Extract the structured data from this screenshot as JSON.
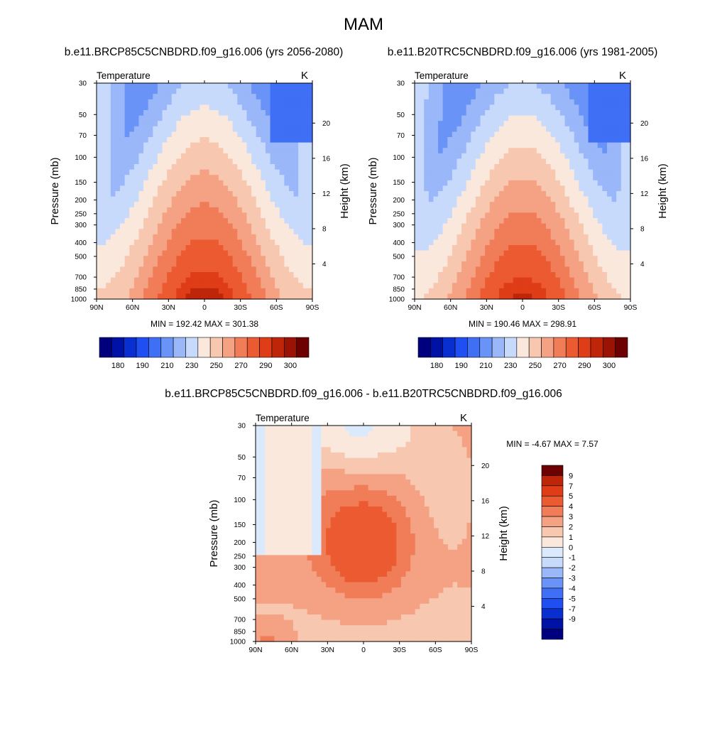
{
  "page_title": "MAM",
  "colors": {
    "abs_scale": [
      "#00007f",
      "#0012a6",
      "#0a2fd0",
      "#1f4ef2",
      "#3f6ff5",
      "#6a93f7",
      "#9ab7f9",
      "#c8dafc",
      "#fbe8dd",
      "#f8c7b0",
      "#f4a283",
      "#f07c58",
      "#eb5a30",
      "#df3d17",
      "#bf2508",
      "#9b1305",
      "#6d0000"
    ],
    "diff_scale": [
      "#00007f",
      "#0012a6",
      "#0a2fd0",
      "#1f4ef2",
      "#3f6ff5",
      "#6a93f7",
      "#9ab7f9",
      "#c8dafc",
      "#daeafc",
      "#fbe8dd",
      "#f8c7b0",
      "#f4a283",
      "#f07c58",
      "#eb5a30",
      "#df3d17",
      "#bf2508",
      "#6d0000"
    ]
  },
  "chart_data": [
    {
      "type": "heatmap",
      "title": "b.e11.BRCP85C5CNBDRD.f09_g16.006 (yrs 2056-2080)",
      "left_label": "Temperature",
      "right_label": "K",
      "variable": "Temperature",
      "units": "K",
      "xlabel": "",
      "ylabel": "Pressure (mb)",
      "y2label": "Height (km)",
      "x_ticks": [
        "90N",
        "60N",
        "30N",
        "0",
        "30S",
        "60S",
        "90S"
      ],
      "y_ticks": [
        "30",
        "50",
        "70",
        "100",
        "150",
        "200",
        "250",
        "300",
        "400",
        "500",
        "700",
        "850",
        "1000"
      ],
      "y2_ticks": [
        "20",
        "16",
        "12",
        "8",
        "4"
      ],
      "ylim": [
        1000,
        30
      ],
      "xlim": [
        90,
        -90
      ],
      "min_label": "MIN = 192.42  MAX = 301.38",
      "min": 192.42,
      "max": 301.38,
      "levels": [
        180,
        185,
        190,
        200,
        210,
        220,
        230,
        240,
        250,
        260,
        270,
        280,
        290,
        295,
        300,
        305
      ],
      "colorbar_labels": [
        "180",
        "190",
        "210",
        "230",
        "250",
        "270",
        "290",
        "300"
      ]
    },
    {
      "type": "heatmap",
      "title": "b.e11.B20TRC5CNBDRD.f09_g16.006 (yrs 1981-2005)",
      "left_label": "Temperature",
      "right_label": "K",
      "variable": "Temperature",
      "units": "K",
      "xlabel": "",
      "ylabel": "Pressure (mb)",
      "y2label": "Height (km)",
      "x_ticks": [
        "90N",
        "60N",
        "30N",
        "0",
        "30S",
        "60S",
        "90S"
      ],
      "y_ticks": [
        "30",
        "50",
        "70",
        "100",
        "150",
        "200",
        "250",
        "300",
        "400",
        "500",
        "700",
        "850",
        "1000"
      ],
      "y2_ticks": [
        "20",
        "16",
        "12",
        "8",
        "4"
      ],
      "ylim": [
        1000,
        30
      ],
      "xlim": [
        90,
        -90
      ],
      "min_label": "MIN = 190.46  MAX = 298.91",
      "min": 190.46,
      "max": 298.91,
      "levels": [
        180,
        185,
        190,
        200,
        210,
        220,
        230,
        240,
        250,
        260,
        270,
        280,
        290,
        295,
        300,
        305
      ],
      "colorbar_labels": [
        "180",
        "190",
        "210",
        "230",
        "250",
        "270",
        "290",
        "300"
      ]
    },
    {
      "type": "heatmap",
      "title": "b.e11.BRCP85C5CNBDRD.f09_g16.006 - b.e11.B20TRC5CNBDRD.f09_g16.006",
      "left_label": "Temperature",
      "right_label": "K",
      "variable": "Temperature",
      "units": "K",
      "xlabel": "",
      "ylabel": "Pressure (mb)",
      "y2label": "Height (km)",
      "x_ticks": [
        "90N",
        "60N",
        "30N",
        "0",
        "30S",
        "60S",
        "90S"
      ],
      "y_ticks": [
        "30",
        "50",
        "70",
        "100",
        "150",
        "200",
        "250",
        "300",
        "400",
        "500",
        "700",
        "850",
        "1000"
      ],
      "y2_ticks": [
        "20",
        "16",
        "12",
        "8",
        "4"
      ],
      "ylim": [
        1000,
        30
      ],
      "xlim": [
        90,
        -90
      ],
      "min_label": "MIN =  -4.67  MAX =   7.57",
      "min": -4.67,
      "max": 7.57,
      "levels": [
        -9,
        -7,
        -5,
        -4,
        -3,
        -2,
        -1,
        0,
        1,
        2,
        3,
        4,
        5,
        7,
        9
      ],
      "colorbar_labels": [
        "9",
        "7",
        "5",
        "4",
        "3",
        "2",
        "1",
        "0",
        "-1",
        "-2",
        "-3",
        "-4",
        "-5",
        "-7",
        "-9"
      ]
    }
  ]
}
